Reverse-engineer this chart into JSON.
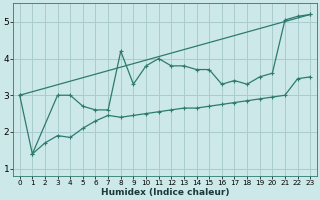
{
  "title": "",
  "xlabel": "Humidex (Indice chaleur)",
  "background_color": "#cce8e8",
  "grid_color": "#aacccc",
  "line_color": "#2e7b6e",
  "xlim": [
    -0.5,
    23.5
  ],
  "ylim": [
    0.8,
    5.5
  ],
  "x_ticks": [
    0,
    1,
    2,
    3,
    4,
    5,
    6,
    7,
    8,
    9,
    10,
    11,
    12,
    13,
    14,
    15,
    16,
    17,
    18,
    19,
    20,
    21,
    22,
    23
  ],
  "y_ticks": [
    1,
    2,
    3,
    4,
    5
  ],
  "series": [
    {
      "x": [
        0,
        1,
        3,
        4,
        5,
        6,
        7,
        8,
        9,
        10,
        11,
        12,
        13,
        14,
        15,
        16,
        17,
        18,
        19,
        20,
        21,
        22,
        23
      ],
      "y": [
        3.0,
        1.4,
        3.0,
        3.0,
        2.7,
        2.6,
        2.6,
        4.2,
        3.3,
        3.8,
        4.0,
        3.8,
        3.8,
        3.7,
        3.7,
        3.3,
        3.4,
        3.3,
        3.5,
        3.6,
        5.05,
        5.15,
        5.2
      ]
    },
    {
      "x": [
        0,
        23
      ],
      "y": [
        3.0,
        5.2
      ]
    },
    {
      "x": [
        1,
        2,
        3,
        4,
        5,
        6,
        7,
        8,
        9,
        10,
        11,
        12,
        13,
        14,
        15,
        16,
        17,
        18,
        19,
        20,
        21,
        22,
        23
      ],
      "y": [
        1.4,
        1.7,
        1.9,
        1.85,
        2.1,
        2.3,
        2.45,
        2.4,
        2.45,
        2.5,
        2.55,
        2.6,
        2.65,
        2.65,
        2.7,
        2.75,
        2.8,
        2.85,
        2.9,
        2.95,
        3.0,
        3.45,
        3.5
      ]
    }
  ]
}
